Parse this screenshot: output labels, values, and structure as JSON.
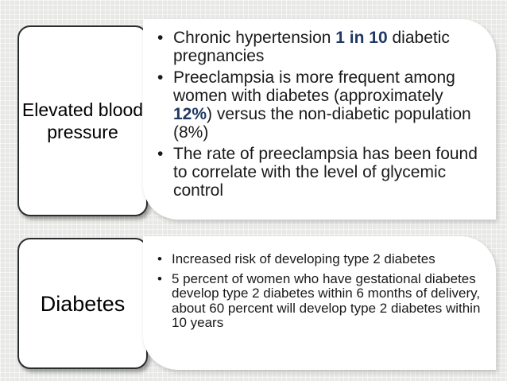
{
  "rows": [
    {
      "label": "Elevated blood pressure",
      "bullets": [
        {
          "before": "Chronic hypertension ",
          "highlight": "1 in 10",
          "after": " diabetic pregnancies"
        },
        {
          "before": "Preeclampsia is more frequent among women with diabetes (approximately ",
          "highlight": "12%",
          "after": ") versus the non-diabetic population (8%)"
        },
        {
          "before": "The rate of preeclampsia has been found to correlate with the level of glycemic control",
          "highlight": "",
          "after": ""
        }
      ]
    },
    {
      "label": "Diabetes",
      "bullets": [
        {
          "before": "Increased risk of developing type 2 diabetes",
          "highlight": "",
          "after": ""
        },
        {
          "before": "5 percent of women who have gestational diabetes develop type 2 diabetes within 6 months of delivery, about 60 percent will develop type 2 diabetes within 10 years",
          "highlight": "",
          "after": ""
        }
      ]
    }
  ],
  "colors": {
    "background": "#e8e9e6",
    "highlight": "#1f3864",
    "label_border": "#2a2d2e"
  }
}
